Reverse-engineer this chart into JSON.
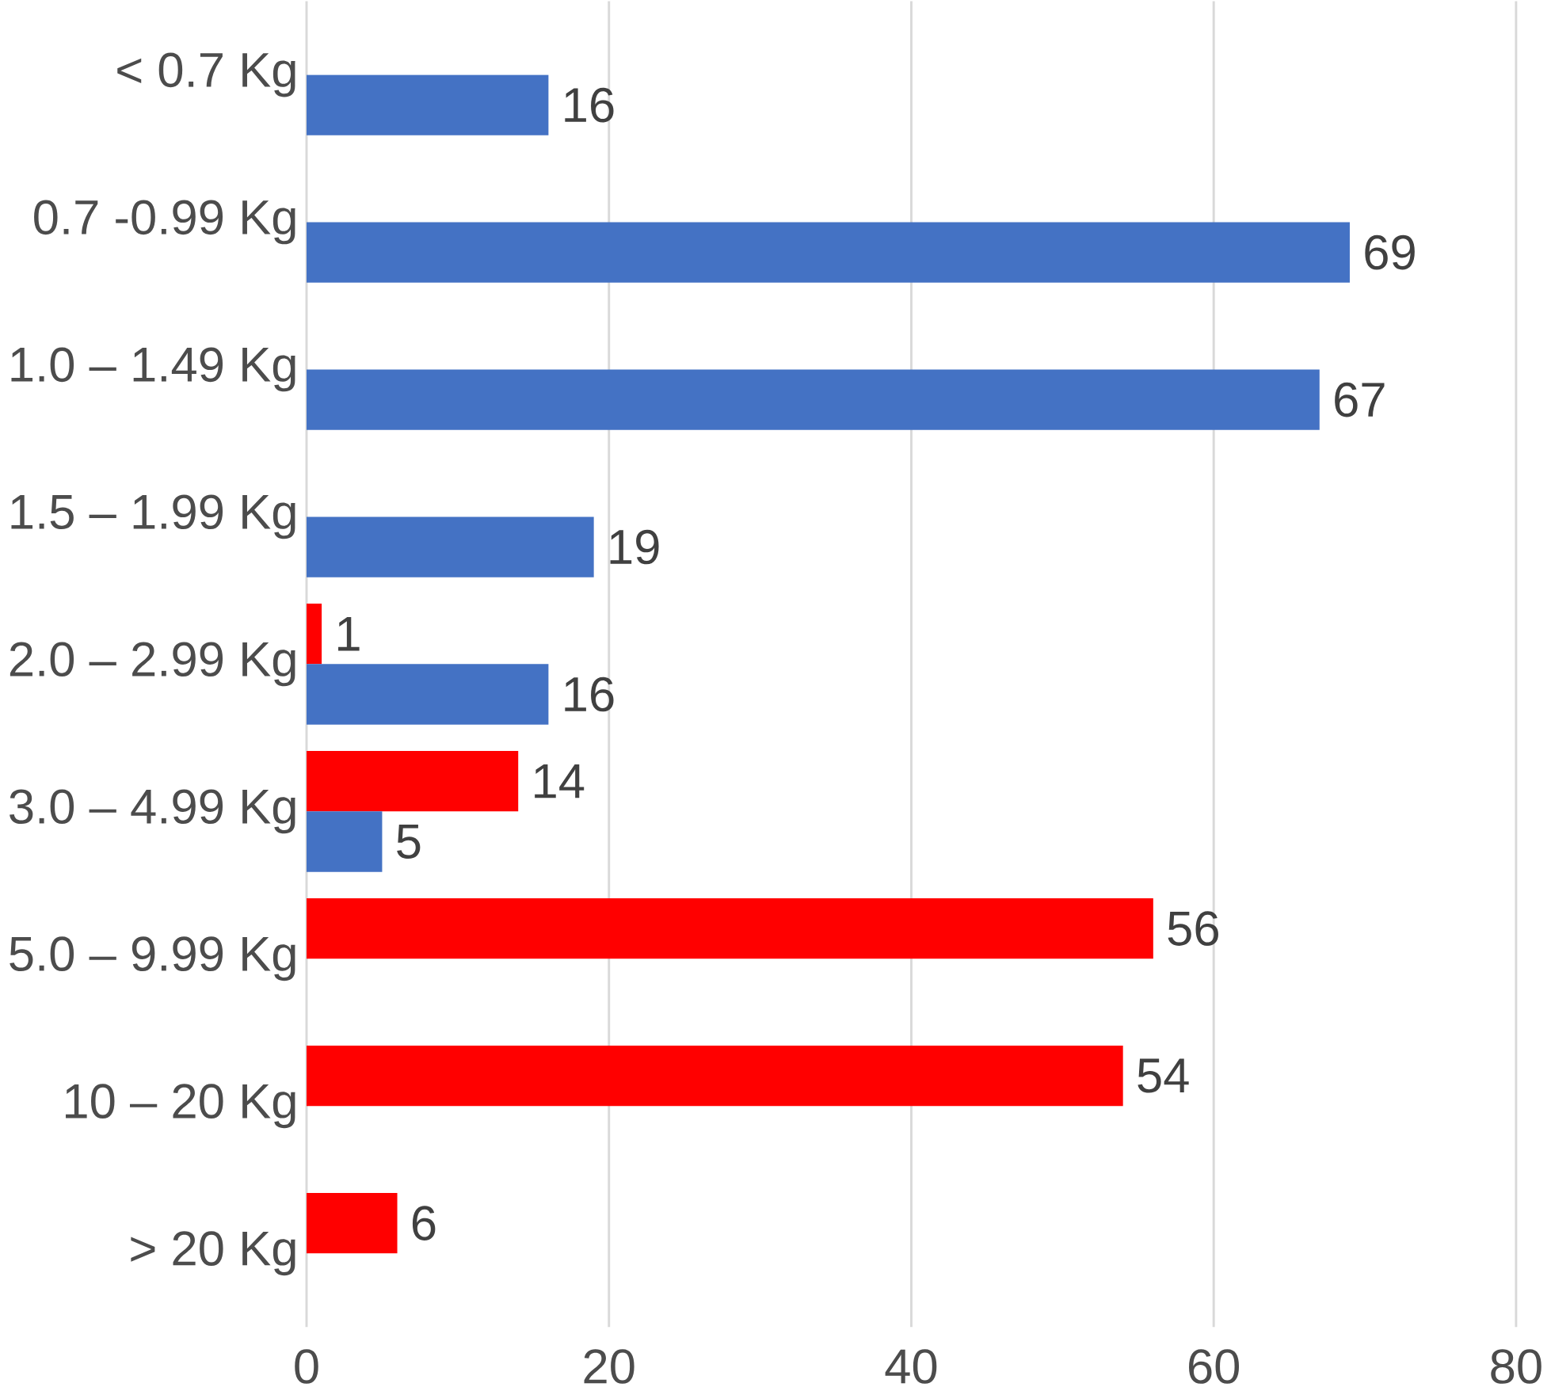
{
  "chart_data": {
    "type": "bar",
    "orientation": "horizontal",
    "categories": [
      "< 0.7 Kg",
      "0.7 -0.99 Kg",
      "1.0 – 1.49 Kg",
      "1.5 – 1.99 Kg",
      "2.0 – 2.99 Kg",
      "3.0 – 4.99 Kg",
      "5.0 – 9.99 Kg",
      "10 – 20 Kg",
      "> 20 Kg"
    ],
    "series": [
      {
        "color": "#ff0000",
        "values": [
          null,
          null,
          null,
          null,
          1,
          14,
          56,
          54,
          6
        ]
      },
      {
        "color": "#4472c4",
        "values": [
          16,
          69,
          67,
          19,
          16,
          5,
          null,
          null,
          null
        ]
      }
    ],
    "xlim": [
      0,
      80
    ],
    "xticks": [
      0,
      20,
      40,
      60,
      80
    ],
    "grid": "x",
    "data_labels": true
  }
}
